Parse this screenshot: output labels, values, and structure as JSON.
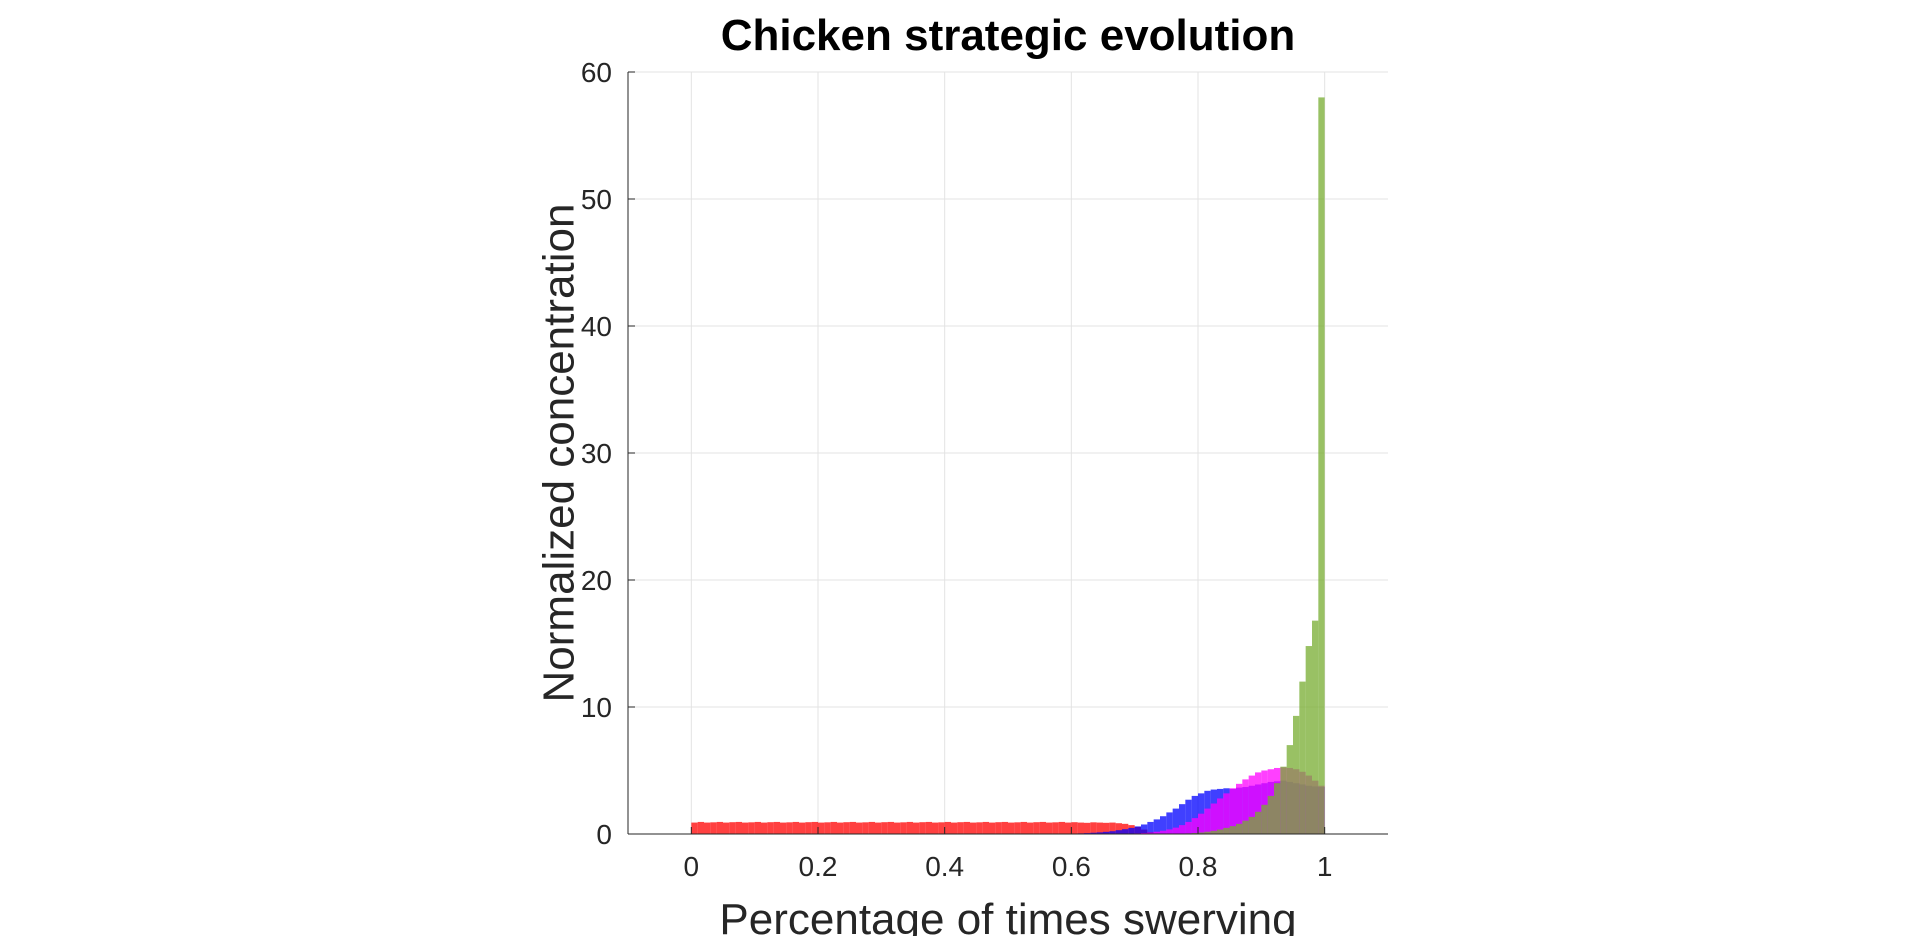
{
  "chart_data": {
    "type": "bar",
    "title": "Chicken strategic evolution",
    "xlabel": "Percentage of times swerving",
    "ylabel": "Normalized concentration",
    "xlim": [
      -0.1,
      1.1
    ],
    "ylim": [
      0,
      60
    ],
    "xticks": [
      "0",
      "0.2",
      "0.4",
      "0.6",
      "0.8",
      "1"
    ],
    "yticks": [
      "0",
      "10",
      "20",
      "30",
      "40",
      "50",
      "60"
    ],
    "grid": true,
    "bin_width": 0.01,
    "series": [
      {
        "color": "#ff0000",
        "x": [
          0.005,
          0.015,
          0.025,
          0.035,
          0.045,
          0.055,
          0.065,
          0.075,
          0.085,
          0.095,
          0.105,
          0.115,
          0.125,
          0.135,
          0.145,
          0.155,
          0.165,
          0.175,
          0.185,
          0.195,
          0.205,
          0.215,
          0.225,
          0.235,
          0.245,
          0.255,
          0.265,
          0.275,
          0.285,
          0.295,
          0.305,
          0.315,
          0.325,
          0.335,
          0.345,
          0.355,
          0.365,
          0.375,
          0.385,
          0.395,
          0.405,
          0.415,
          0.425,
          0.435,
          0.445,
          0.455,
          0.465,
          0.475,
          0.485,
          0.495,
          0.505,
          0.515,
          0.525,
          0.535,
          0.545,
          0.555,
          0.565,
          0.575,
          0.585,
          0.595,
          0.605,
          0.615,
          0.625,
          0.635,
          0.645,
          0.655,
          0.665,
          0.675,
          0.685,
          0.695,
          0.705,
          0.715,
          0.725
        ],
        "values": [
          0.9,
          0.95,
          0.9,
          0.92,
          0.95,
          0.9,
          0.93,
          0.95,
          0.9,
          0.92,
          0.95,
          0.9,
          0.93,
          0.95,
          0.9,
          0.92,
          0.95,
          0.9,
          0.93,
          0.95,
          0.9,
          0.92,
          0.95,
          0.9,
          0.93,
          0.95,
          0.9,
          0.92,
          0.95,
          0.9,
          0.93,
          0.95,
          0.9,
          0.92,
          0.95,
          0.9,
          0.93,
          0.95,
          0.9,
          0.92,
          0.95,
          0.9,
          0.93,
          0.95,
          0.9,
          0.92,
          0.95,
          0.9,
          0.93,
          0.95,
          0.9,
          0.92,
          0.95,
          0.9,
          0.93,
          0.95,
          0.9,
          0.92,
          0.95,
          0.9,
          0.93,
          0.9,
          0.88,
          0.92,
          0.9,
          0.88,
          0.9,
          0.85,
          0.8,
          0.7,
          0.55,
          0.35,
          0.15
        ]
      },
      {
        "color": "#0000ff",
        "x": [
          0.595,
          0.605,
          0.615,
          0.625,
          0.635,
          0.645,
          0.655,
          0.665,
          0.675,
          0.685,
          0.695,
          0.705,
          0.715,
          0.725,
          0.735,
          0.745,
          0.755,
          0.765,
          0.775,
          0.785,
          0.795,
          0.805,
          0.815,
          0.825,
          0.835,
          0.845,
          0.855,
          0.865,
          0.875,
          0.885,
          0.895,
          0.905,
          0.915,
          0.925,
          0.935,
          0.945,
          0.955,
          0.965,
          0.975,
          0.985,
          0.995
        ],
        "values": [
          0.02,
          0.03,
          0.05,
          0.07,
          0.1,
          0.13,
          0.17,
          0.22,
          0.3,
          0.38,
          0.48,
          0.6,
          0.75,
          0.95,
          1.15,
          1.4,
          1.7,
          2.0,
          2.35,
          2.7,
          3.0,
          3.2,
          3.4,
          3.5,
          3.55,
          3.6,
          3.55,
          3.65,
          3.7,
          3.8,
          3.9,
          4.0,
          4.1,
          4.15,
          4.2,
          4.1,
          4.0,
          3.9,
          3.8,
          3.75,
          3.7
        ]
      },
      {
        "color": "#ff00ff",
        "x": [
          0.695,
          0.705,
          0.715,
          0.725,
          0.735,
          0.745,
          0.755,
          0.765,
          0.775,
          0.785,
          0.795,
          0.805,
          0.815,
          0.825,
          0.835,
          0.845,
          0.855,
          0.865,
          0.875,
          0.885,
          0.895,
          0.905,
          0.915,
          0.925,
          0.935,
          0.945,
          0.955,
          0.965,
          0.975,
          0.985,
          0.995
        ],
        "values": [
          0.03,
          0.05,
          0.08,
          0.12,
          0.18,
          0.26,
          0.36,
          0.5,
          0.7,
          0.95,
          1.25,
          1.6,
          2.0,
          2.4,
          2.8,
          3.2,
          3.6,
          3.95,
          4.3,
          4.6,
          4.85,
          5.0,
          5.1,
          5.2,
          5.25,
          5.2,
          5.1,
          4.9,
          4.6,
          4.2,
          3.8
        ]
      },
      {
        "color": "#77ac30",
        "x": [
          0.785,
          0.795,
          0.805,
          0.815,
          0.825,
          0.835,
          0.845,
          0.855,
          0.865,
          0.875,
          0.885,
          0.895,
          0.905,
          0.915,
          0.925,
          0.935,
          0.945,
          0.955,
          0.965,
          0.975,
          0.985,
          0.995
        ],
        "values": [
          0.05,
          0.08,
          0.12,
          0.18,
          0.25,
          0.35,
          0.48,
          0.62,
          0.8,
          1.05,
          1.35,
          1.75,
          2.3,
          3.0,
          4.0,
          5.3,
          7.0,
          9.3,
          12.0,
          14.8,
          16.8,
          58.0
        ]
      }
    ]
  }
}
